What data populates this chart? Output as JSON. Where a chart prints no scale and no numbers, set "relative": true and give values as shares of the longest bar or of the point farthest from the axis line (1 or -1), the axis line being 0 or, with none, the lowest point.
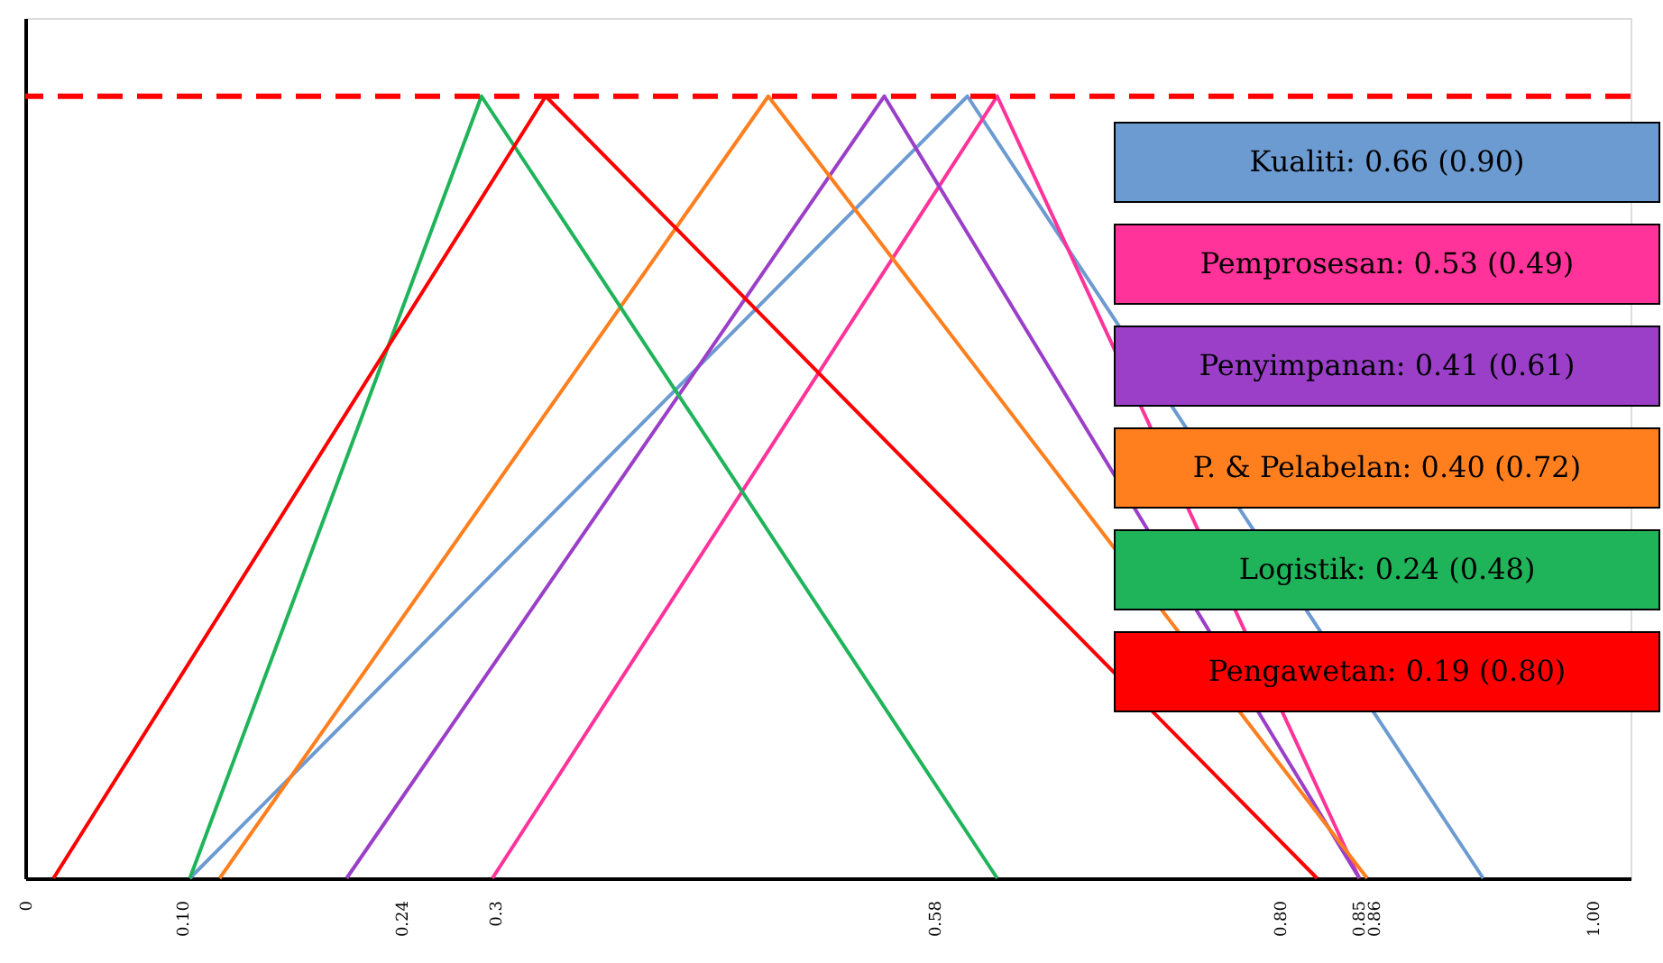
{
  "chart_data": {
    "type": "line",
    "relative": true,
    "legend": "top right",
    "grid": false,
    "marker": "none",
    "line_style": "solid",
    "xlim": [
      0,
      1.024
    ],
    "xticks": [
      {
        "value": 0,
        "label": "0"
      },
      {
        "value": 0.1,
        "label": "0.10"
      },
      {
        "value": 0.24,
        "label": "0.24"
      },
      {
        "value": 0.3,
        "label": "0.3"
      },
      {
        "value": 0.58,
        "label": "0.58"
      },
      {
        "value": 0.8,
        "label": "0.80"
      },
      {
        "value": 0.85,
        "label": "0.85"
      },
      {
        "value": 0.86,
        "label": "0.86"
      },
      {
        "value": 1,
        "label": "1.00"
      }
    ],
    "ref_lines": [
      {
        "axis": "y",
        "value": 1,
        "color": "#ff0000",
        "line_style": "dashed"
      }
    ],
    "series": [
      {
        "name": "Kualiti: 0.66 (0.90)",
        "color": "#6c9bd2",
        "x": [
          0.105,
          0.601,
          0.93
        ],
        "values": [
          0,
          1,
          0
        ]
      },
      {
        "name": "Pemprosesan: 0.53 (0.49)",
        "color": "#ff3399",
        "x": [
          0.298,
          0.62,
          0.851
        ],
        "values": [
          0,
          1,
          0
        ]
      },
      {
        "name": "Penyimpanan: 0.41 (0.61)",
        "color": "#9b3fc8",
        "x": [
          0.205,
          0.548,
          0.851
        ],
        "values": [
          0,
          1,
          0
        ]
      },
      {
        "name": "P. & Pelabelan: 0.40 (0.72)",
        "color": "#ff7f1e",
        "x": [
          0.124,
          0.474,
          0.856
        ],
        "values": [
          0,
          1,
          0
        ]
      },
      {
        "name": "Logistik: 0.24 (0.48)",
        "color": "#1fb45a",
        "x": [
          0.105,
          0.291,
          0.62
        ],
        "values": [
          0,
          1,
          0
        ]
      },
      {
        "name": "Pengawetan: 0.19 (0.80)",
        "color": "#ff0000",
        "x": [
          0.018,
          0.332,
          0.824
        ],
        "values": [
          0,
          1,
          0
        ]
      }
    ]
  }
}
